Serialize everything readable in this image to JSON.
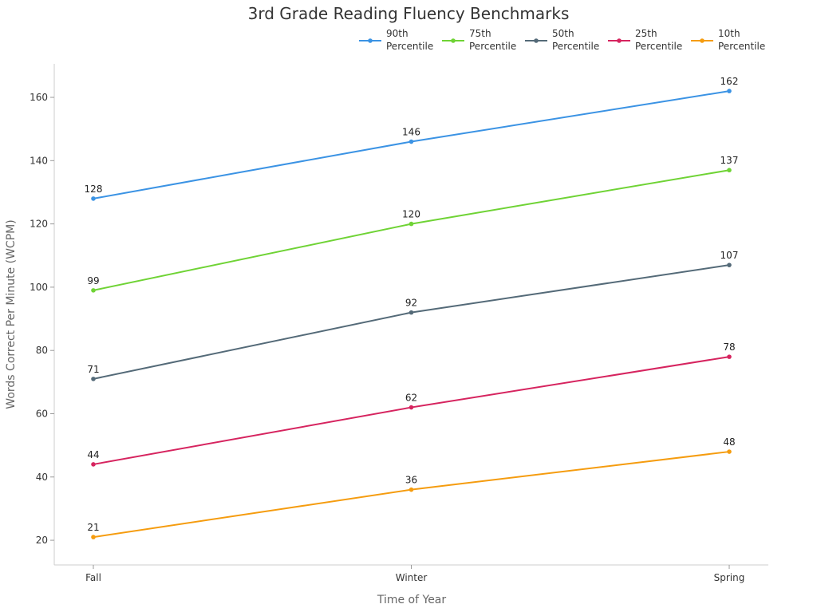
{
  "chart_data": {
    "type": "line",
    "title": "3rd Grade Reading Fluency Benchmarks",
    "xlabel": "Time of Year",
    "ylabel": "Words Correct Per Minute (WCPM)",
    "categories": [
      "Fall",
      "Winter",
      "Spring"
    ],
    "ylim": [
      12.2,
      170.6
    ],
    "yticks": [
      20,
      40,
      60,
      80,
      100,
      120,
      140,
      160
    ],
    "grid": false,
    "legend_placement": "top-right",
    "series": [
      {
        "name": "90th\nPercentile",
        "line1": "90th",
        "line2": "Percentile",
        "color": "#3b93e4",
        "values": [
          128,
          146,
          162
        ]
      },
      {
        "name": "75th\nPercentile",
        "line1": "75th",
        "line2": "Percentile",
        "color": "#6fd335",
        "values": [
          99,
          120,
          137
        ]
      },
      {
        "name": "50th\nPercentile",
        "line1": "50th",
        "line2": "Percentile",
        "color": "#546a78",
        "values": [
          71,
          92,
          107
        ]
      },
      {
        "name": "25th\nPercentile",
        "line1": "25th",
        "line2": "Percentile",
        "color": "#d6245f",
        "values": [
          44,
          62,
          78
        ]
      },
      {
        "name": "10th\nPercentile",
        "line1": "10th",
        "line2": "Percentile",
        "color": "#f59c0f",
        "values": [
          21,
          36,
          48
        ]
      }
    ]
  }
}
